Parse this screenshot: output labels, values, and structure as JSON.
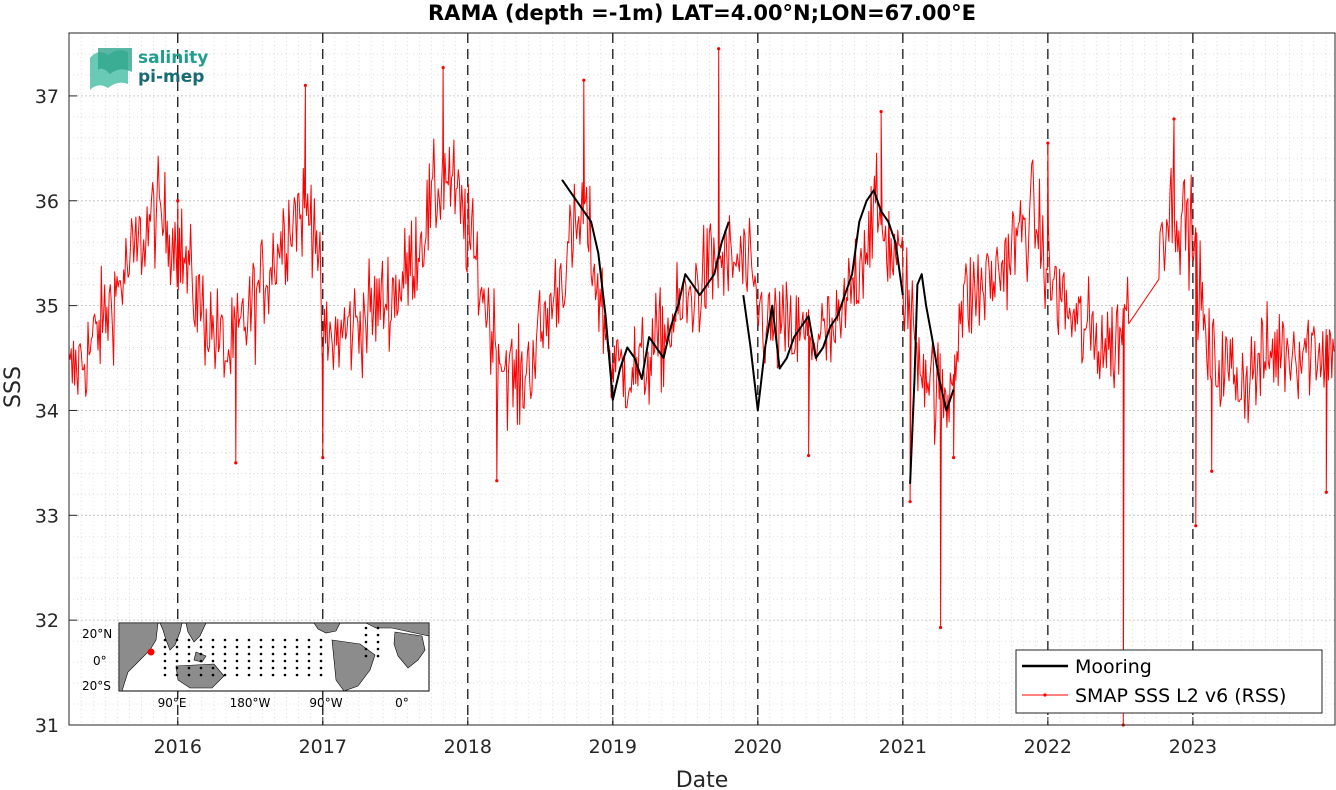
{
  "chart_data": {
    "type": "line",
    "title": "RAMA (depth =-1m) LAT=4.00°N;LON=67.00°E",
    "xlabel": "Date",
    "ylabel": "SSS",
    "xlim": [
      2015.25,
      2023.98
    ],
    "ylim": [
      31,
      37.6
    ],
    "x_ticks": [
      "2016",
      "2017",
      "2018",
      "2019",
      "2020",
      "2021",
      "2022",
      "2023"
    ],
    "y_ticks": [
      "31",
      "32",
      "33",
      "34",
      "35",
      "36",
      "37"
    ],
    "grid": true,
    "year_boundaries_dashed": true,
    "legend_position": "bottom-right",
    "series": [
      {
        "name": "Mooring",
        "color": "#000000",
        "segments": [
          {
            "x": [
              2018.65,
              2018.7,
              2018.75,
              2018.8,
              2018.85,
              2018.9,
              2018.95,
              2019.0,
              2019.05,
              2019.1,
              2019.15,
              2019.2,
              2019.25,
              2019.3,
              2019.35,
              2019.4,
              2019.45,
              2019.5,
              2019.55,
              2019.6,
              2019.65,
              2019.7,
              2019.75,
              2019.8
            ],
            "y": [
              36.2,
              36.1,
              36.0,
              35.9,
              35.8,
              35.5,
              34.9,
              34.1,
              34.4,
              34.6,
              34.5,
              34.3,
              34.7,
              34.6,
              34.5,
              34.8,
              35.0,
              35.3,
              35.2,
              35.1,
              35.2,
              35.3,
              35.6,
              35.8
            ]
          },
          {
            "x": [
              2019.9,
              2019.95,
              2020.0,
              2020.05,
              2020.1,
              2020.15,
              2020.2,
              2020.25,
              2020.3,
              2020.35,
              2020.4,
              2020.45,
              2020.5,
              2020.55,
              2020.6,
              2020.65,
              2020.7,
              2020.75,
              2020.8,
              2020.85,
              2020.9,
              2020.95,
              2021.0
            ],
            "y": [
              35.1,
              34.6,
              34.0,
              34.6,
              35.0,
              34.4,
              34.5,
              34.7,
              34.8,
              34.9,
              34.5,
              34.6,
              34.8,
              34.9,
              35.1,
              35.3,
              35.8,
              36.0,
              36.1,
              35.9,
              35.8,
              35.6,
              35.1
            ]
          },
          {
            "x": [
              2021.05,
              2021.08,
              2021.1,
              2021.13,
              2021.16,
              2021.2,
              2021.25,
              2021.3,
              2021.35
            ],
            "y": [
              33.3,
              34.3,
              35.2,
              35.3,
              35.0,
              34.7,
              34.3,
              34.0,
              34.2
            ]
          }
        ]
      },
      {
        "name": "SMAP SSS L2 v6 (RSS)",
        "color": "#ff0000",
        "anchors_x": [
          2015.25,
          2015.4,
          2015.6,
          2015.85,
          2016.0,
          2016.15,
          2016.35,
          2016.55,
          2016.8,
          2016.95,
          2017.0,
          2017.3,
          2017.55,
          2017.85,
          2018.0,
          2018.2,
          2018.35,
          2018.55,
          2018.8,
          2019.0,
          2019.2,
          2019.45,
          2019.7,
          2019.9,
          2020.05,
          2020.3,
          2020.55,
          2020.8,
          2021.0,
          2021.1,
          2021.3,
          2021.4,
          2021.65,
          2021.9,
          2022.0,
          2022.2,
          2022.45,
          2022.55,
          2022.65,
          2022.85,
          2023.0,
          2023.1,
          2023.35,
          2023.6,
          2023.98
        ],
        "anchors_y": [
          34.3,
          34.6,
          35.2,
          35.9,
          35.6,
          35.0,
          34.5,
          35.1,
          35.9,
          35.9,
          34.6,
          34.9,
          35.2,
          36.3,
          35.7,
          34.6,
          34.2,
          34.9,
          35.9,
          34.4,
          34.4,
          34.9,
          35.4,
          35.4,
          34.8,
          34.7,
          34.7,
          35.9,
          35.3,
          34.6,
          34.0,
          35.0,
          35.3,
          35.9,
          35.3,
          34.8,
          34.6,
          35.0,
          35.2,
          36.0,
          35.7,
          34.5,
          34.3,
          34.6,
          34.6
        ],
        "points_per_year": 130,
        "noise_sss": 0.45,
        "notable_points": [
          {
            "x": 2016.0,
            "y": 36.0
          },
          {
            "x": 2016.4,
            "y": 33.5
          },
          {
            "x": 2016.88,
            "y": 37.1
          },
          {
            "x": 2017.0,
            "y": 33.55
          },
          {
            "x": 2017.83,
            "y": 37.27
          },
          {
            "x": 2018.2,
            "y": 33.33
          },
          {
            "x": 2018.8,
            "y": 37.15
          },
          {
            "x": 2019.73,
            "y": 37.45
          },
          {
            "x": 2020.35,
            "y": 33.57
          },
          {
            "x": 2020.85,
            "y": 36.85
          },
          {
            "x": 2021.05,
            "y": 33.13
          },
          {
            "x": 2021.26,
            "y": 31.93
          },
          {
            "x": 2021.35,
            "y": 33.55
          },
          {
            "x": 2022.0,
            "y": 36.55
          },
          {
            "x": 2022.52,
            "y": 31.0
          },
          {
            "x": 2022.87,
            "y": 36.78
          },
          {
            "x": 2023.02,
            "y": 32.9
          },
          {
            "x": 2023.13,
            "y": 33.42
          },
          {
            "x": 2023.92,
            "y": 33.22
          }
        ]
      }
    ]
  },
  "logo": {
    "line1": "salinity",
    "line2": "pi-mep"
  },
  "inset_map": {
    "lat_labels": [
      "20°N",
      "0°",
      "20°S"
    ],
    "lon_labels": [
      "90°E",
      "180°W",
      "90°W",
      "0°"
    ],
    "station_color": "#ff0000"
  }
}
